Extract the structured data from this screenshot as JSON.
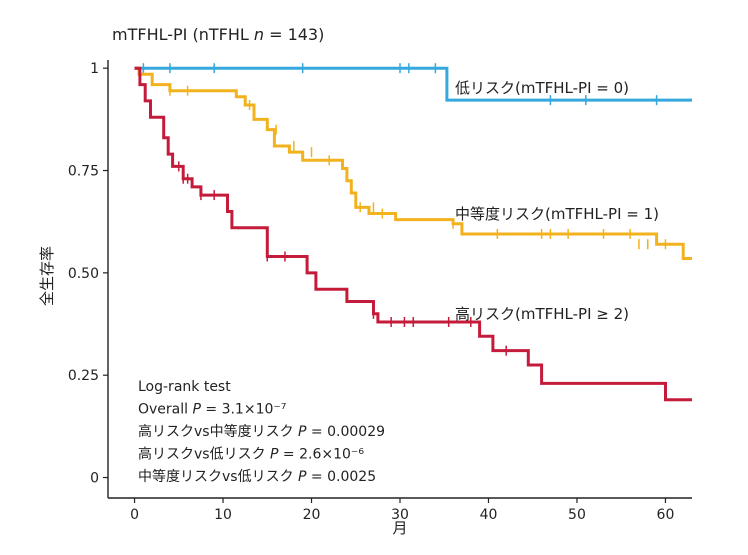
{
  "chart_data": {
    "type": "line",
    "title_prefix": "mTFHL-PI (nTFHL ",
    "title_n": "n",
    "title_suffix": " = 143)",
    "xlabel": "月",
    "ylabel": "全生存率",
    "xlim": [
      -3,
      63
    ],
    "ylim": [
      -0.05,
      1.02
    ],
    "x_ticks": [
      0,
      10,
      20,
      30,
      40,
      50,
      60
    ],
    "y_ticks": [
      {
        "value": 0,
        "label": "0"
      },
      {
        "value": 0.25,
        "label": "0.25"
      },
      {
        "value": 0.5,
        "label": "0.50"
      },
      {
        "value": 0.75,
        "label": "0.75"
      },
      {
        "value": 1,
        "label": "1"
      }
    ],
    "grid": false,
    "series": [
      {
        "name": "低リスク(mTFHL-PI = 0)",
        "color": "#35a9dd",
        "steps": [
          [
            0,
            1.0
          ],
          [
            35.3,
            0.922
          ],
          [
            63,
            0.922
          ]
        ],
        "censors": [
          [
            1,
            1.0
          ],
          [
            4,
            1.0
          ],
          [
            9,
            1.0
          ],
          [
            19,
            1.0
          ],
          [
            30,
            1.0
          ],
          [
            31,
            1.0
          ],
          [
            34,
            1.0
          ],
          [
            47,
            0.922
          ],
          [
            51,
            0.922
          ],
          [
            59,
            0.922
          ]
        ]
      },
      {
        "name": "中等度リスク(mTFHL-PI = 1)",
        "color": "#f2b21e",
        "steps": [
          [
            0,
            1.0
          ],
          [
            0.5,
            0.985
          ],
          [
            2,
            0.96
          ],
          [
            4,
            0.945
          ],
          [
            11.5,
            0.93
          ],
          [
            12.5,
            0.91
          ],
          [
            13.5,
            0.875
          ],
          [
            15,
            0.85
          ],
          [
            15.8,
            0.81
          ],
          [
            17.5,
            0.795
          ],
          [
            19,
            0.775
          ],
          [
            23.5,
            0.755
          ],
          [
            24,
            0.725
          ],
          [
            24.5,
            0.695
          ],
          [
            25,
            0.66
          ],
          [
            26.5,
            0.645
          ],
          [
            29.5,
            0.63
          ],
          [
            36,
            0.62
          ],
          [
            37,
            0.595
          ],
          [
            59,
            0.57
          ],
          [
            62,
            0.535
          ],
          [
            63,
            0.535
          ]
        ],
        "censors": [
          [
            4,
            0.945
          ],
          [
            6,
            0.945
          ],
          [
            13,
            0.91
          ],
          [
            16,
            0.85
          ],
          [
            18,
            0.81
          ],
          [
            20,
            0.795
          ],
          [
            22,
            0.775
          ],
          [
            25.5,
            0.66
          ],
          [
            27,
            0.66
          ],
          [
            28,
            0.645
          ],
          [
            36,
            0.62
          ],
          [
            41,
            0.595
          ],
          [
            46,
            0.595
          ],
          [
            47,
            0.595
          ],
          [
            49,
            0.595
          ],
          [
            53,
            0.595
          ],
          [
            56,
            0.595
          ],
          [
            57,
            0.57
          ],
          [
            58,
            0.57
          ],
          [
            60,
            0.57
          ]
        ]
      },
      {
        "name": "高リスク(mTFHL-PI ≥ 2)",
        "color": "#c51b3b",
        "steps": [
          [
            0,
            1.0
          ],
          [
            0.6,
            0.96
          ],
          [
            1.2,
            0.92
          ],
          [
            1.8,
            0.88
          ],
          [
            3.3,
            0.83
          ],
          [
            3.8,
            0.79
          ],
          [
            4.3,
            0.76
          ],
          [
            5.5,
            0.73
          ],
          [
            6.5,
            0.71
          ],
          [
            7.5,
            0.69
          ],
          [
            10.5,
            0.65
          ],
          [
            11,
            0.61
          ],
          [
            15,
            0.54
          ],
          [
            18,
            0.54
          ],
          [
            19.5,
            0.5
          ],
          [
            20.5,
            0.46
          ],
          [
            24,
            0.43
          ],
          [
            27,
            0.4
          ],
          [
            27.5,
            0.38
          ],
          [
            39,
            0.345
          ],
          [
            40.5,
            0.31
          ],
          [
            44.5,
            0.275
          ],
          [
            46,
            0.23
          ],
          [
            60,
            0.19
          ],
          [
            63,
            0.19
          ]
        ],
        "censors": [
          [
            5,
            0.76
          ],
          [
            5.5,
            0.73
          ],
          [
            6,
            0.73
          ],
          [
            7.5,
            0.69
          ],
          [
            9,
            0.69
          ],
          [
            15,
            0.54
          ],
          [
            17,
            0.54
          ],
          [
            27,
            0.4
          ],
          [
            29,
            0.38
          ],
          [
            30.5,
            0.38
          ],
          [
            31.5,
            0.38
          ],
          [
            35.5,
            0.38
          ],
          [
            38,
            0.38
          ],
          [
            42,
            0.31
          ]
        ]
      }
    ],
    "annotations": [
      {
        "prefix": "Log-rank test",
        "italic": "",
        "suffix": ""
      },
      {
        "prefix": "Overall ",
        "italic": "P",
        "suffix": " = 3.1×10⁻⁷"
      },
      {
        "prefix": "高リスクvs中等度リスク ",
        "italic": "P",
        "suffix": " = 0.00029"
      },
      {
        "prefix": "高リスクvs低リスク ",
        "italic": "P",
        "suffix": " = 2.6×10⁻⁶"
      },
      {
        "prefix": "中等度リスクvs低リスク ",
        "italic": "P",
        "suffix": " = 0.0025"
      }
    ]
  }
}
